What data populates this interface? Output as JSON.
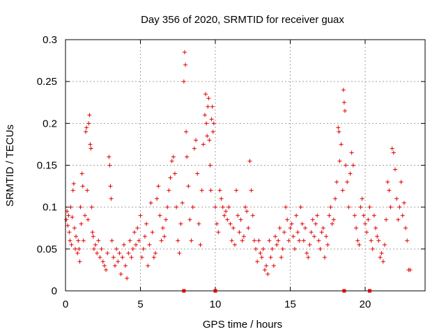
{
  "chart_data": {
    "type": "scatter",
    "title": "Day 356 of 2020, SRMTID for receiver guax",
    "xlabel": "GPS time / hours",
    "ylabel": "SRMTID / TECUs",
    "xlim": [
      0,
      24
    ],
    "ylim": [
      0,
      0.3
    ],
    "xticks": [
      0,
      5,
      10,
      15,
      20
    ],
    "xtick_labels": [
      "0",
      "5",
      "10",
      "15",
      "20"
    ],
    "yticks": [
      0,
      0.05,
      0.1,
      0.15,
      0.2,
      0.25,
      0.3
    ],
    "ytick_labels": [
      "0",
      "0.05",
      "0.1",
      "0.15",
      "0.2",
      "0.25",
      "0.3"
    ],
    "grid": true,
    "marker": "+",
    "color": "#e00000",
    "series": [
      {
        "name": "SRMTID",
        "points": [
          [
            0.05,
            0.085
          ],
          [
            0.1,
            0.095
          ],
          [
            0.15,
            0.078
          ],
          [
            0.2,
            0.09
          ],
          [
            0.25,
            0.07
          ],
          [
            0.3,
            0.06
          ],
          [
            0.35,
            0.1
          ],
          [
            0.4,
            0.055
          ],
          [
            0.45,
            0.088
          ],
          [
            0.5,
            0.12
          ],
          [
            0.55,
            0.128
          ],
          [
            0.6,
            0.075
          ],
          [
            0.65,
            0.05
          ],
          [
            0.7,
            0.065
          ],
          [
            0.8,
            0.045
          ],
          [
            0.85,
            0.06
          ],
          [
            0.9,
            0.05
          ],
          [
            0.95,
            0.035
          ],
          [
            1.0,
            0.1
          ],
          [
            1.05,
            0.08
          ],
          [
            1.1,
            0.14
          ],
          [
            1.15,
            0.125
          ],
          [
            1.2,
            0.06
          ],
          [
            1.3,
            0.09
          ],
          [
            1.35,
            0.19
          ],
          [
            1.4,
            0.195
          ],
          [
            1.45,
            0.12
          ],
          [
            1.5,
            0.085
          ],
          [
            1.55,
            0.2
          ],
          [
            1.6,
            0.21
          ],
          [
            1.65,
            0.175
          ],
          [
            1.7,
            0.17
          ],
          [
            1.75,
            0.1
          ],
          [
            1.8,
            0.07
          ],
          [
            1.85,
            0.065
          ],
          [
            1.9,
            0.05
          ],
          [
            2.0,
            0.055
          ],
          [
            2.1,
            0.045
          ],
          [
            2.2,
            0.06
          ],
          [
            2.3,
            0.04
          ],
          [
            2.4,
            0.05
          ],
          [
            2.5,
            0.035
          ],
          [
            2.6,
            0.03
          ],
          [
            2.7,
            0.025
          ],
          [
            2.8,
            0.045
          ],
          [
            2.9,
            0.16
          ],
          [
            2.95,
            0.15
          ],
          [
            3.0,
            0.125
          ],
          [
            3.05,
            0.11
          ],
          [
            3.1,
            0.06
          ],
          [
            3.2,
            0.04
          ],
          [
            3.3,
            0.03
          ],
          [
            3.4,
            0.05
          ],
          [
            3.5,
            0.035
          ],
          [
            3.6,
            0.045
          ],
          [
            3.7,
            0.02
          ],
          [
            3.8,
            0.04
          ],
          [
            3.9,
            0.055
          ],
          [
            4.0,
            0.03
          ],
          [
            4.1,
            0.015
          ],
          [
            4.2,
            0.045
          ],
          [
            4.3,
            0.06
          ],
          [
            4.4,
            0.04
          ],
          [
            4.5,
            0.05
          ],
          [
            4.6,
            0.07
          ],
          [
            4.7,
            0.055
          ],
          [
            4.8,
            0.075
          ],
          [
            4.9,
            0.06
          ],
          [
            5.0,
            0.09
          ],
          [
            5.1,
            0.04
          ],
          [
            5.2,
            0.05
          ],
          [
            5.3,
            0.065
          ],
          [
            5.4,
            0.08
          ],
          [
            5.5,
            0.03
          ],
          [
            5.6,
            0.055
          ],
          [
            5.7,
            0.105
          ],
          [
            5.8,
            0.07
          ],
          [
            5.9,
            0.04
          ],
          [
            6.0,
            0.045
          ],
          [
            6.1,
            0.11
          ],
          [
            6.2,
            0.125
          ],
          [
            6.3,
            0.09
          ],
          [
            6.4,
            0.06
          ],
          [
            6.5,
            0.075
          ],
          [
            6.6,
            0.065
          ],
          [
            6.7,
            0.085
          ],
          [
            6.8,
            0.1
          ],
          [
            6.9,
            0.12
          ],
          [
            7.0,
            0.135
          ],
          [
            7.1,
            0.155
          ],
          [
            7.2,
            0.16
          ],
          [
            7.3,
            0.14
          ],
          [
            7.4,
            0.1
          ],
          [
            7.5,
            0.06
          ],
          [
            7.6,
            0.045
          ],
          [
            7.7,
            0.08
          ],
          [
            7.8,
            0.105
          ],
          [
            7.9,
            0.25
          ],
          [
            7.95,
            0.285
          ],
          [
            8.0,
            0.27
          ],
          [
            8.05,
            0.19
          ],
          [
            8.1,
            0.16
          ],
          [
            8.2,
            0.125
          ],
          [
            8.3,
            0.085
          ],
          [
            8.4,
            0.06
          ],
          [
            8.5,
            0.1
          ],
          [
            8.6,
            0.17
          ],
          [
            8.7,
            0.18
          ],
          [
            8.8,
            0.14
          ],
          [
            8.9,
            0.08
          ],
          [
            9.0,
            0.055
          ],
          [
            9.1,
            0.12
          ],
          [
            9.2,
            0.175
          ],
          [
            9.3,
            0.21
          ],
          [
            9.35,
            0.235
          ],
          [
            9.4,
            0.2
          ],
          [
            9.45,
            0.185
          ],
          [
            9.5,
            0.22
          ],
          [
            9.55,
            0.23
          ],
          [
            9.6,
            0.18
          ],
          [
            9.65,
            0.15
          ],
          [
            9.7,
            0.12
          ],
          [
            9.75,
            0.205
          ],
          [
            9.8,
            0.22
          ],
          [
            9.85,
            0.19
          ],
          [
            9.9,
            0.2
          ],
          [
            10.0,
            0.1
          ],
          [
            10.1,
            0.08
          ],
          [
            10.2,
            0.07
          ],
          [
            10.3,
            0.12
          ],
          [
            10.4,
            0.11
          ],
          [
            10.5,
            0.1
          ],
          [
            10.6,
            0.09
          ],
          [
            10.7,
            0.095
          ],
          [
            10.8,
            0.085
          ],
          [
            10.9,
            0.1
          ],
          [
            11.0,
            0.08
          ],
          [
            11.1,
            0.06
          ],
          [
            11.2,
            0.075
          ],
          [
            11.3,
            0.055
          ],
          [
            11.4,
            0.12
          ],
          [
            11.5,
            0.09
          ],
          [
            11.6,
            0.07
          ],
          [
            11.7,
            0.085
          ],
          [
            11.8,
            0.06
          ],
          [
            11.9,
            0.065
          ],
          [
            12.0,
            0.1
          ],
          [
            12.1,
            0.095
          ],
          [
            12.2,
            0.075
          ],
          [
            12.3,
            0.155
          ],
          [
            12.4,
            0.12
          ],
          [
            12.5,
            0.09
          ],
          [
            12.6,
            0.06
          ],
          [
            12.7,
            0.05
          ],
          [
            12.8,
            0.035
          ],
          [
            12.9,
            0.06
          ],
          [
            13.0,
            0.045
          ],
          [
            13.1,
            0.04
          ],
          [
            13.2,
            0.05
          ],
          [
            13.3,
            0.025
          ],
          [
            13.4,
            0.03
          ],
          [
            13.5,
            0.02
          ],
          [
            13.6,
            0.06
          ],
          [
            13.7,
            0.04
          ],
          [
            13.8,
            0.05
          ],
          [
            13.9,
            0.03
          ],
          [
            14.0,
            0.065
          ],
          [
            14.1,
            0.055
          ],
          [
            14.2,
            0.06
          ],
          [
            14.3,
            0.075
          ],
          [
            14.4,
            0.04
          ],
          [
            14.5,
            0.05
          ],
          [
            14.6,
            0.07
          ],
          [
            14.7,
            0.1
          ],
          [
            14.8,
            0.085
          ],
          [
            14.9,
            0.06
          ],
          [
            15.0,
            0.075
          ],
          [
            15.1,
            0.08
          ],
          [
            15.2,
            0.065
          ],
          [
            15.3,
            0.05
          ],
          [
            15.4,
            0.09
          ],
          [
            15.5,
            0.07
          ],
          [
            15.6,
            0.06
          ],
          [
            15.7,
            0.1
          ],
          [
            15.8,
            0.08
          ],
          [
            15.9,
            0.06
          ],
          [
            16.0,
            0.075
          ],
          [
            16.1,
            0.045
          ],
          [
            16.2,
            0.04
          ],
          [
            16.3,
            0.055
          ],
          [
            16.4,
            0.07
          ],
          [
            16.5,
            0.085
          ],
          [
            16.6,
            0.065
          ],
          [
            16.7,
            0.08
          ],
          [
            16.8,
            0.09
          ],
          [
            16.9,
            0.06
          ],
          [
            17.0,
            0.05
          ],
          [
            17.1,
            0.07
          ],
          [
            17.2,
            0.075
          ],
          [
            17.3,
            0.04
          ],
          [
            17.4,
            0.065
          ],
          [
            17.5,
            0.055
          ],
          [
            17.6,
            0.09
          ],
          [
            17.7,
            0.1
          ],
          [
            17.8,
            0.08
          ],
          [
            17.9,
            0.085
          ],
          [
            18.0,
            0.11
          ],
          [
            18.1,
            0.13
          ],
          [
            18.2,
            0.195
          ],
          [
            18.25,
            0.19
          ],
          [
            18.3,
            0.155
          ],
          [
            18.4,
            0.175
          ],
          [
            18.5,
            0.12
          ],
          [
            18.55,
            0.24
          ],
          [
            18.6,
            0.225
          ],
          [
            18.65,
            0.215
          ],
          [
            18.7,
            0.15
          ],
          [
            18.8,
            0.13
          ],
          [
            18.9,
            0.1
          ],
          [
            19.0,
            0.14
          ],
          [
            19.1,
            0.165
          ],
          [
            19.2,
            0.15
          ],
          [
            19.3,
            0.09
          ],
          [
            19.4,
            0.075
          ],
          [
            19.5,
            0.06
          ],
          [
            19.6,
            0.055
          ],
          [
            19.7,
            0.1
          ],
          [
            19.8,
            0.11
          ],
          [
            19.9,
            0.09
          ],
          [
            20.0,
            0.08
          ],
          [
            20.1,
            0.07
          ],
          [
            20.2,
            0.085
          ],
          [
            20.3,
            0.1
          ],
          [
            20.4,
            0.06
          ],
          [
            20.5,
            0.05
          ],
          [
            20.6,
            0.09
          ],
          [
            20.7,
            0.075
          ],
          [
            20.8,
            0.065
          ],
          [
            20.9,
            0.06
          ],
          [
            21.0,
            0.04
          ],
          [
            21.1,
            0.045
          ],
          [
            21.2,
            0.035
          ],
          [
            21.3,
            0.055
          ],
          [
            21.4,
            0.085
          ],
          [
            21.5,
            0.13
          ],
          [
            21.6,
            0.12
          ],
          [
            21.7,
            0.1
          ],
          [
            21.8,
            0.17
          ],
          [
            21.9,
            0.165
          ],
          [
            22.0,
            0.145
          ],
          [
            22.1,
            0.11
          ],
          [
            22.2,
            0.085
          ],
          [
            22.3,
            0.1
          ],
          [
            22.4,
            0.13
          ],
          [
            22.5,
            0.09
          ],
          [
            22.6,
            0.105
          ],
          [
            22.7,
            0.075
          ],
          [
            22.8,
            0.06
          ],
          [
            22.9,
            0.025
          ],
          [
            23.0,
            0.025
          ]
        ]
      }
    ],
    "zero_marks_x": [
      7.9,
      10.0,
      18.6,
      20.3
    ]
  }
}
